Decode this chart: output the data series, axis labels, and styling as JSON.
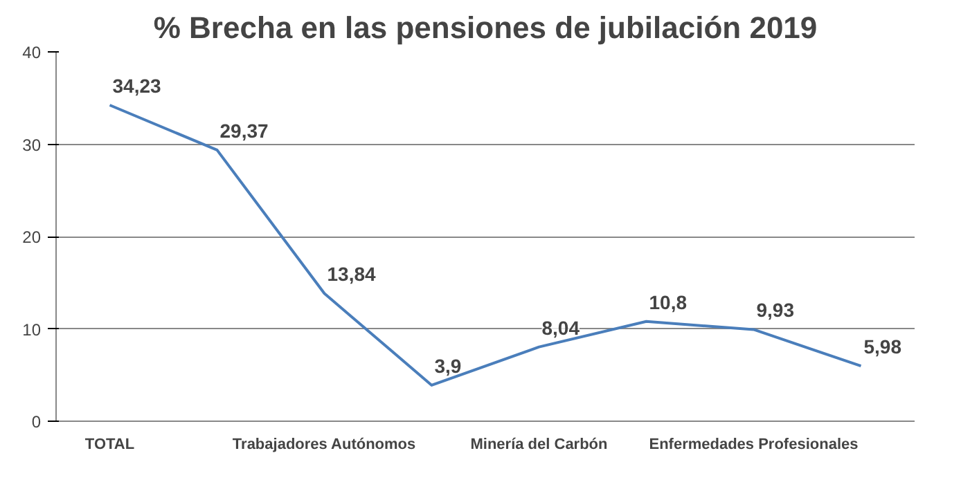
{
  "chart_data": {
    "type": "line",
    "title": "% Brecha en las pensiones de jubilación 2019",
    "categories": [
      "TOTAL",
      null,
      "Trabajadores Autónomos",
      null,
      "Minería del Carbón",
      null,
      "Enfermedades Profesionales",
      null
    ],
    "series": [
      {
        "color": "#4a7ebb",
        "values": [
          34.23,
          29.37,
          13.84,
          3.9,
          8.04,
          10.8,
          9.93,
          5.98
        ]
      }
    ],
    "value_labels": [
      "34,23",
      "29,37",
      "13,84",
      "3,9",
      "8,04",
      "10,8",
      "9,93",
      "5,98"
    ],
    "ylim": [
      0,
      40
    ],
    "yticks": [
      0,
      10,
      20,
      30,
      40
    ],
    "grid": "y",
    "marker": "none",
    "line_style": "solid"
  }
}
